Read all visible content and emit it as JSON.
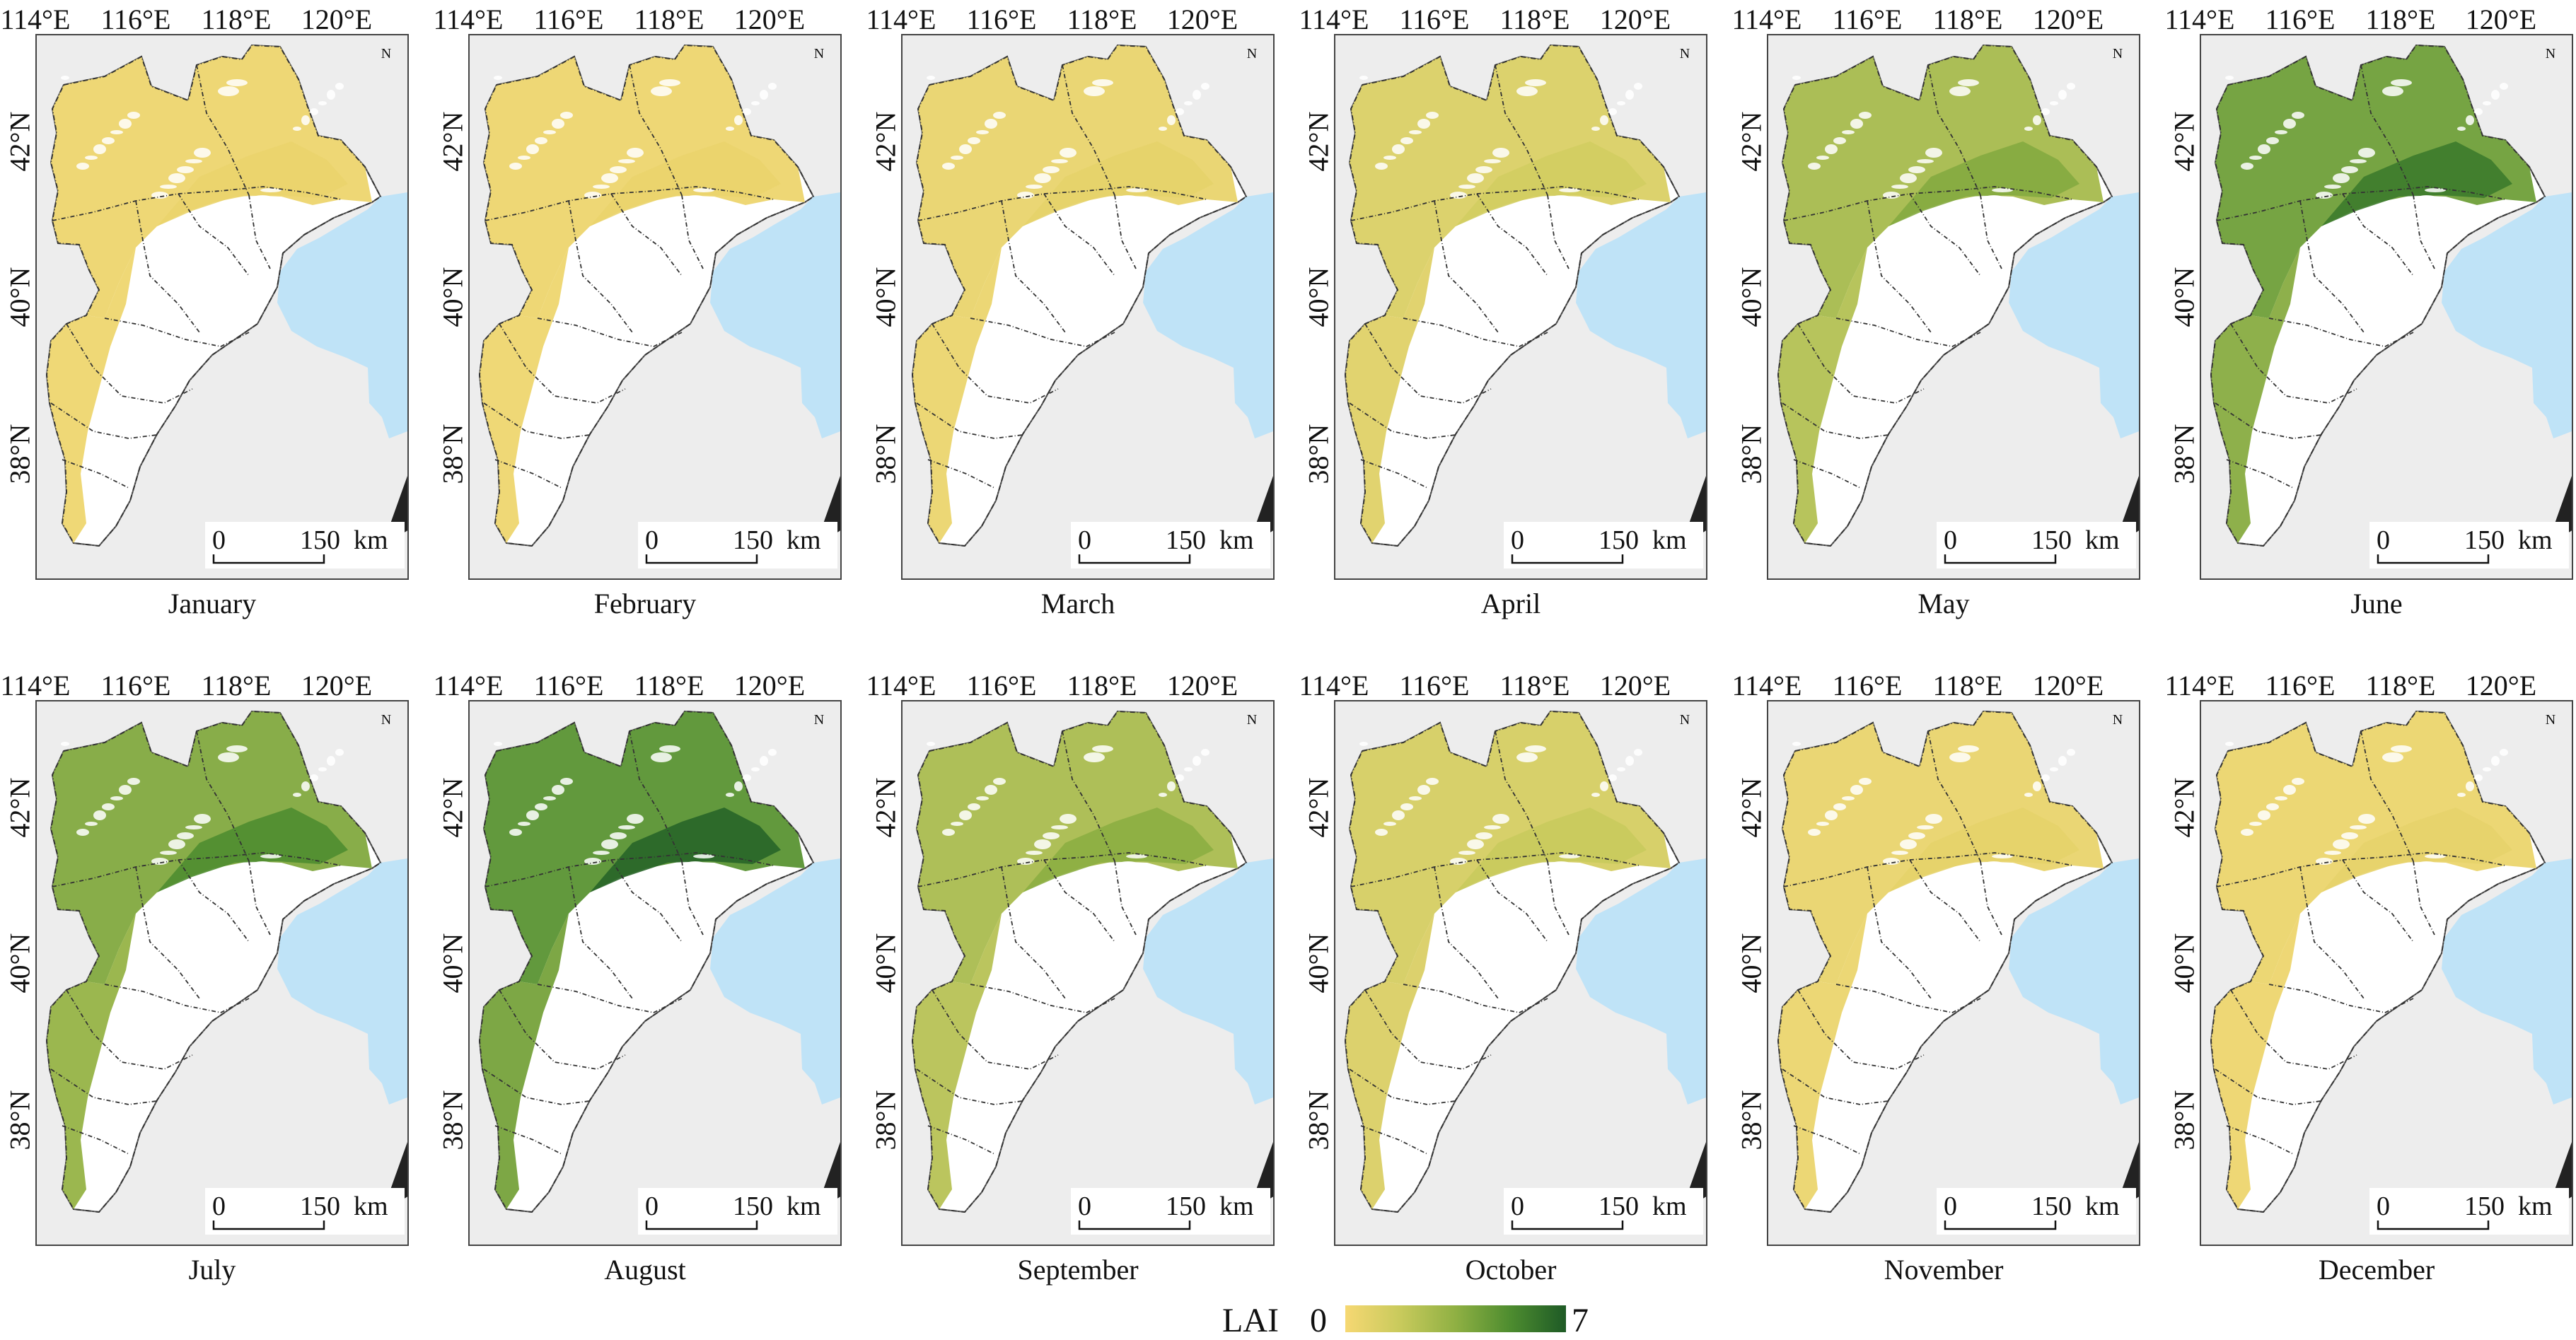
{
  "figure": {
    "lon_labels": [
      "114°E",
      "116°E",
      "118°E",
      "120°E"
    ],
    "lat_labels": [
      "42°N",
      "40°N",
      "38°N"
    ],
    "north_arrow": "N",
    "scale_bar": {
      "zero": "0",
      "distance": "150",
      "unit": "km"
    },
    "legend": {
      "label": "LAI",
      "min": "0",
      "max": "7",
      "colors": [
        "#f6d873",
        "#c8ca5c",
        "#8fb043",
        "#4d8c2f",
        "#1e5a26"
      ]
    },
    "colors": {
      "land_outside": "#ededed",
      "sea": "#bfe3f7",
      "nonveg": "#ffffff",
      "border": "#333333"
    },
    "panels": [
      {
        "month": "January",
        "lai_level": 0.05
      },
      {
        "month": "February",
        "lai_level": 0.05
      },
      {
        "month": "March",
        "lai_level": 0.07
      },
      {
        "month": "April",
        "lai_level": 0.15
      },
      {
        "month": "May",
        "lai_level": 0.4
      },
      {
        "month": "June",
        "lai_level": 0.62
      },
      {
        "month": "July",
        "lai_level": 0.55
      },
      {
        "month": "August",
        "lai_level": 0.7
      },
      {
        "month": "September",
        "lai_level": 0.38
      },
      {
        "month": "October",
        "lai_level": 0.18
      },
      {
        "month": "November",
        "lai_level": 0.07
      },
      {
        "month": "December",
        "lai_level": 0.06
      }
    ]
  }
}
